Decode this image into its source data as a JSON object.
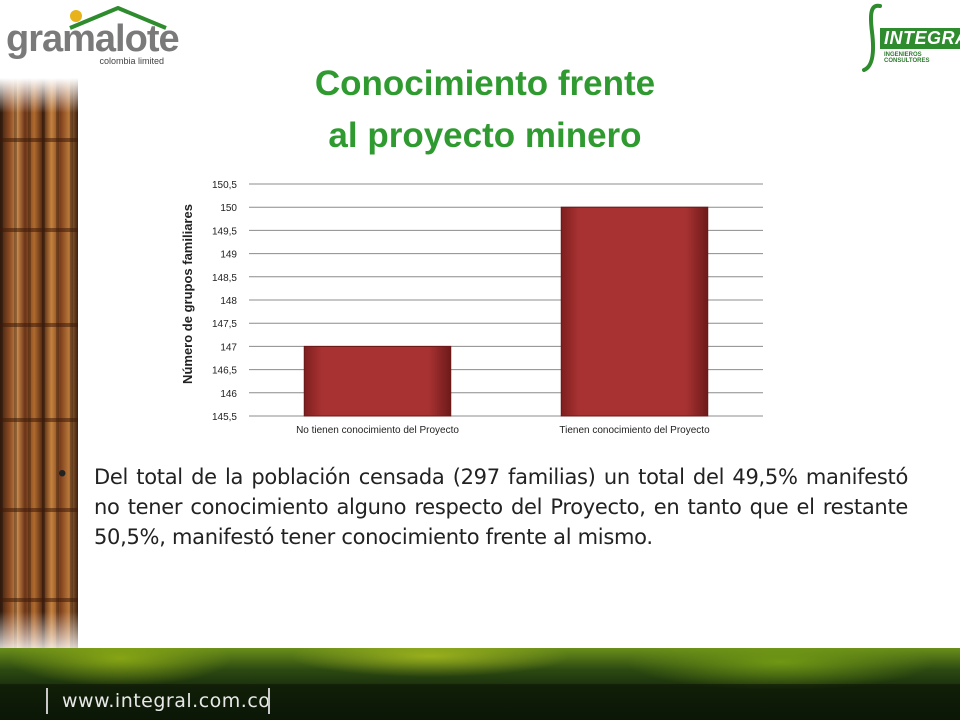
{
  "header": {
    "left_logo": {
      "name": "gramalote",
      "sub": "colombia limited"
    },
    "right_logo": {
      "name": "INTEGRAL",
      "tag": "INGENIEROS CONSULTORES"
    }
  },
  "title_lines": [
    "Conocimiento frente",
    "al proyecto minero"
  ],
  "chart_data": {
    "type": "bar",
    "categories": [
      "No tienen conocimiento del Proyecto",
      "Tienen conocimiento del Proyecto"
    ],
    "values": [
      147,
      150
    ],
    "title": "",
    "xlabel": "",
    "ylabel": "Número de grupos familiares",
    "ylim": [
      145.5,
      150.5
    ],
    "yticks": [
      145.5,
      146,
      146.5,
      147,
      147.5,
      148,
      148.5,
      149,
      149.5,
      150,
      150.5
    ],
    "ytick_labels": [
      "145,5",
      "146",
      "146,5",
      "147",
      "147,5",
      "148",
      "148,5",
      "149",
      "149,5",
      "150",
      "150,5"
    ],
    "grid": true,
    "legend": "none",
    "bar_color": "#a83232"
  },
  "body": {
    "bullet": "•",
    "text": "Del total de la población censada (297 familias) un total del 49,5% manifestó no tener conocimiento alguno respecto del Proyecto, en tanto que el restante 50,5%, manifestó tener conocimiento frente al mismo."
  },
  "footer": {
    "url": "www.integral.com.co"
  },
  "colors": {
    "title": "#2f9a2f",
    "bar": "#a83232",
    "gridline": "#8c8c8c"
  }
}
